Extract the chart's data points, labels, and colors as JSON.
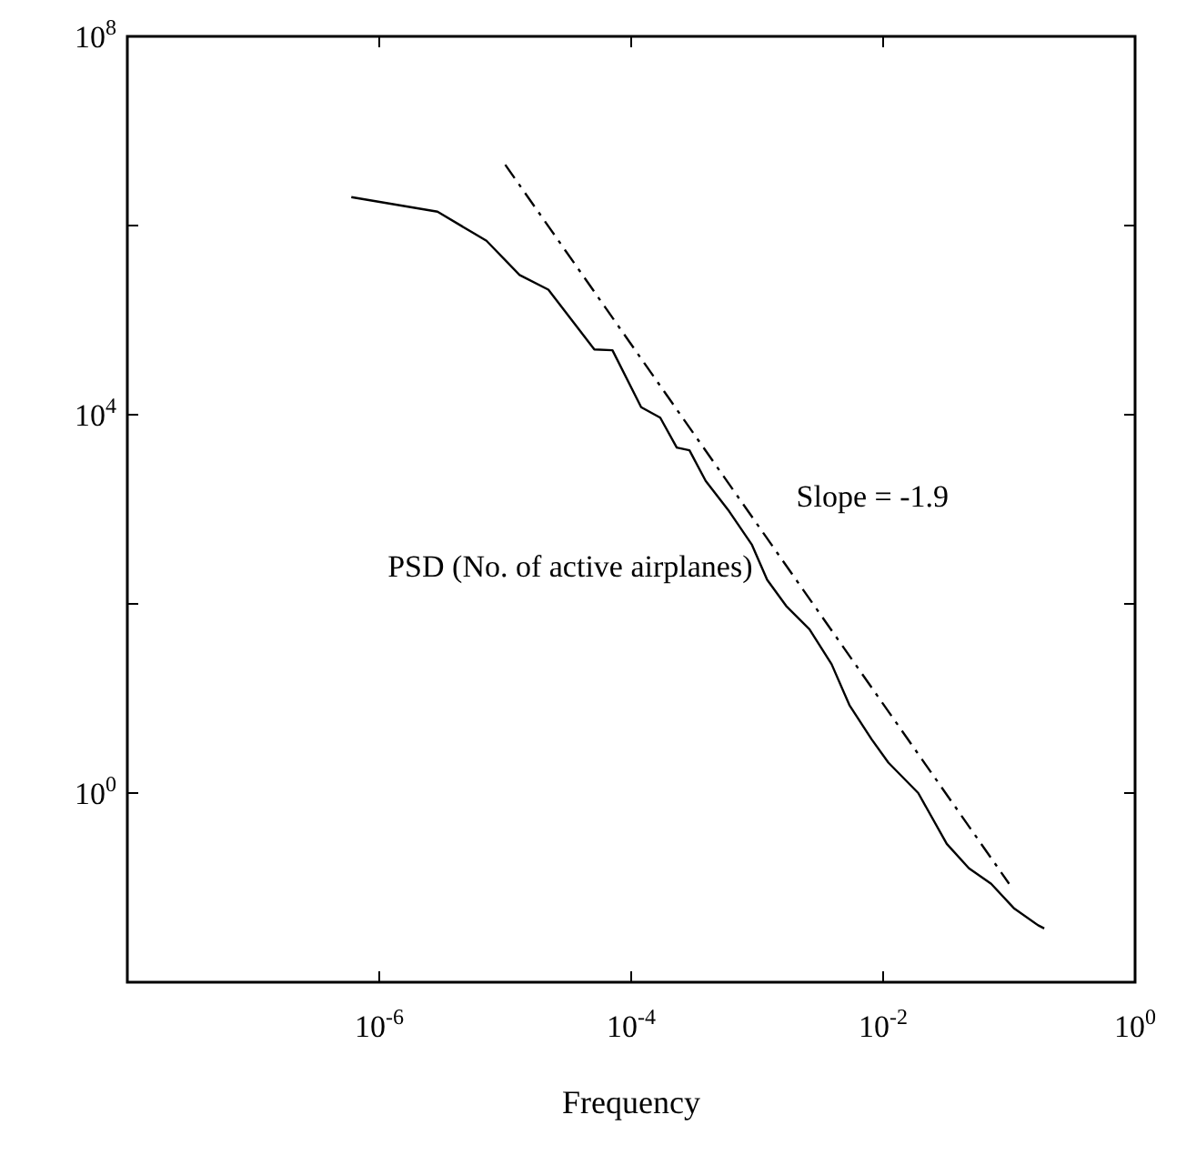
{
  "chart_data": {
    "type": "line",
    "xlabel": "Frequency",
    "log": "xy",
    "grid": false,
    "legend": false,
    "marker": "none",
    "xlim": [
      1e-08,
      1
    ],
    "ylim": [
      0.01,
      100000000
    ],
    "xticks": [
      {
        "value": 1e-06,
        "label": "10$^{-6}$"
      },
      {
        "value": 0.0001,
        "label": "10$^{-4}$"
      },
      {
        "value": 0.01,
        "label": "10$^{-2}$"
      },
      {
        "value": 1,
        "label": "10$^{0}$"
      }
    ],
    "yticks": [
      {
        "value": 0.01,
        "label": null
      },
      {
        "value": 1,
        "label": "10$^{0}$"
      },
      {
        "value": 100,
        "label": null
      },
      {
        "value": 10000,
        "label": "10$^{4}$"
      },
      {
        "value": 1000000,
        "label": null
      },
      {
        "value": 100000000,
        "label": "10$^{8}$"
      }
    ],
    "series": [
      {
        "name": "PSD (No. of active airplanes)",
        "color": "#000000",
        "line_style": "solid",
        "x": [
          6e-07,
          2.9e-06,
          7.1e-06,
          1.3e-05,
          2.2e-05,
          5.1e-05,
          7.1e-05,
          0.00012,
          0.00017,
          0.00023,
          0.00029,
          0.00039,
          0.0006,
          0.00091,
          0.0012,
          0.0017,
          0.0026,
          0.0039,
          0.0054,
          0.0081,
          0.011,
          0.019,
          0.032,
          0.048,
          0.072,
          0.11,
          0.17,
          0.19
        ],
        "values": [
          2000000.0,
          1400000.0,
          690000.0,
          300000.0,
          210000.0,
          49000.0,
          48000.0,
          12000.0,
          9300.0,
          4500.0,
          4200.0,
          2000.0,
          950.0,
          420.0,
          180.0,
          95,
          54,
          23,
          8.5,
          3.7,
          2.1,
          1.0,
          0.29,
          0.16,
          0.11,
          0.06,
          0.04,
          0.037
        ]
      },
      {
        "name": "Slope = -1.9",
        "color": "#000000",
        "line_style": "dashdot",
        "x": [
          1e-05,
          0.1
        ],
        "values": [
          4400000.0,
          0.11
        ]
      }
    ]
  }
}
